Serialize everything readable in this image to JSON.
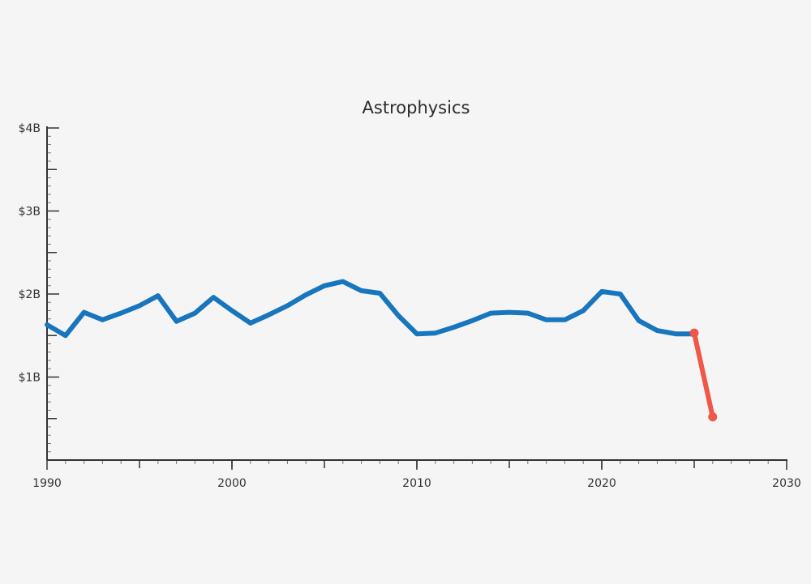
{
  "chart_data": {
    "type": "line",
    "title": "Astrophysics",
    "xlabel": "",
    "ylabel": "",
    "xlim": [
      1990,
      2030
    ],
    "ylim": [
      0,
      4
    ],
    "x_ticks": [
      1990,
      2000,
      2010,
      2020,
      2030
    ],
    "x_tick_labels": [
      "1990",
      "2000",
      "2010",
      "2020",
      "2030"
    ],
    "y_ticks": [
      1,
      2,
      3,
      4
    ],
    "y_tick_labels": [
      "$1B",
      "$2B",
      "$3B",
      "$4B"
    ],
    "y_unit": "billions of dollars",
    "grid": false,
    "series": [
      {
        "color": "#1776bd",
        "x": [
          1990,
          1991,
          1992,
          1993,
          1994,
          1995,
          1996,
          1997,
          1998,
          1999,
          2000,
          2001,
          2002,
          2003,
          2004,
          2005,
          2006,
          2007,
          2008,
          2009,
          2010,
          2011,
          2012,
          2013,
          2014,
          2015,
          2016,
          2017,
          2018,
          2019,
          2020,
          2021,
          2022,
          2023,
          2024,
          2025
        ],
        "values": [
          1.63,
          1.5,
          1.78,
          1.69,
          1.77,
          1.86,
          1.98,
          1.67,
          1.77,
          1.96,
          1.8,
          1.65,
          1.75,
          1.86,
          1.99,
          2.1,
          2.15,
          2.04,
          2.01,
          1.74,
          1.52,
          1.53,
          1.6,
          1.68,
          1.77,
          1.78,
          1.77,
          1.69,
          1.69,
          1.8,
          2.03,
          2.0,
          1.68,
          1.56,
          1.52,
          1.52
        ]
      },
      {
        "color": "#ef5747",
        "markers": true,
        "x": [
          2025,
          2026
        ],
        "values": [
          1.53,
          0.52
        ]
      }
    ]
  }
}
